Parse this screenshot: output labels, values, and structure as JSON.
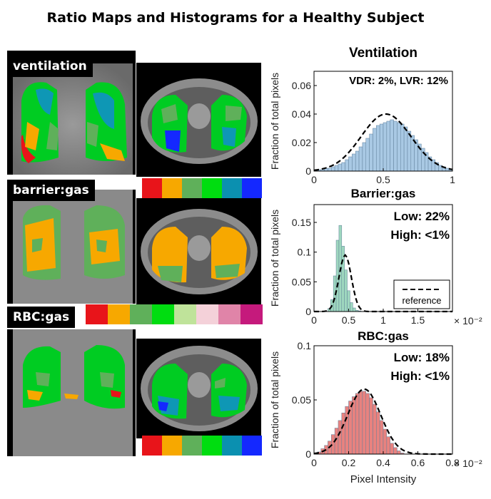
{
  "title": "Ratio Maps and Histograms for a Healthy Subject",
  "panels": [
    {
      "label": "ventilation"
    },
    {
      "label": "barrier:gas"
    },
    {
      "label": "RBC:gas"
    }
  ],
  "colorbars": {
    "six_bin": [
      "#e8141a",
      "#f7a800",
      "#5fb05a",
      "#00dd10",
      "#0b90b0",
      "#1428ff"
    ],
    "eight_bin": [
      "#e8141a",
      "#f7a800",
      "#5fb05a",
      "#00dd10",
      "#bfe39a",
      "#f4d1d9",
      "#e084a8",
      "#c51a7c"
    ]
  },
  "chart_data": [
    {
      "type": "bar",
      "title": "Ventilation",
      "ylabel": "Fraction of total pixels",
      "xlabel": "",
      "xlim": [
        0,
        1
      ],
      "ylim": [
        0,
        0.07
      ],
      "xticks": [
        "0",
        "0.5",
        "1"
      ],
      "yticks": [
        "0",
        "0.02",
        "0.04",
        "0.06"
      ],
      "annotation": "VDR: 2%, LVR: 12%",
      "bar_color": "#a9c9e4",
      "bin_width": 0.025,
      "x": [
        0.0125,
        0.0375,
        0.0625,
        0.0875,
        0.1125,
        0.1375,
        0.1625,
        0.1875,
        0.2125,
        0.2375,
        0.2625,
        0.2875,
        0.3125,
        0.3375,
        0.3625,
        0.3875,
        0.4125,
        0.4375,
        0.4625,
        0.4875,
        0.5125,
        0.5375,
        0.5625,
        0.5875,
        0.6125,
        0.6375,
        0.6625,
        0.6875,
        0.7125,
        0.7375,
        0.7625,
        0.7875,
        0.8125,
        0.8375,
        0.8625,
        0.8875,
        0.9125,
        0.9375,
        0.9625,
        0.9875
      ],
      "values": [
        0.001,
        0.001,
        0.001,
        0.002,
        0.002,
        0.003,
        0.004,
        0.005,
        0.006,
        0.008,
        0.01,
        0.012,
        0.014,
        0.017,
        0.02,
        0.023,
        0.026,
        0.03,
        0.032,
        0.033,
        0.034,
        0.035,
        0.036,
        0.035,
        0.034,
        0.033,
        0.031,
        0.028,
        0.025,
        0.022,
        0.019,
        0.016,
        0.013,
        0.01,
        0.008,
        0.006,
        0.004,
        0.003,
        0.002,
        0.001
      ],
      "reference": {
        "mean": 0.52,
        "sd": 0.18,
        "peak": 0.04
      }
    },
    {
      "type": "bar",
      "title": "Barrier:gas",
      "ylabel": "Fraction of total pixels",
      "xlabel": "",
      "xlim": [
        0,
        0.02
      ],
      "ylim": [
        0,
        0.18
      ],
      "xticks": [
        "0",
        "0.5",
        "1",
        "1.5"
      ],
      "yticks": [
        "0",
        "0.05",
        "0.1",
        "0.15"
      ],
      "xscale_note": "× 10⁻²",
      "annotations": [
        "Low: 22%",
        "High: <1%"
      ],
      "legend": "reference",
      "bar_color": "#9fd8bf",
      "bin_width": 0.0004,
      "x": [
        0.0022,
        0.0026,
        0.003,
        0.0034,
        0.0038,
        0.0042,
        0.0046,
        0.005,
        0.0054,
        0.0058,
        0.0062,
        0.0066
      ],
      "values": [
        0.005,
        0.02,
        0.06,
        0.12,
        0.145,
        0.11,
        0.07,
        0.035,
        0.015,
        0.006,
        0.002,
        0.001
      ],
      "reference": {
        "mean": 0.0045,
        "sd": 0.0009,
        "peak": 0.095
      }
    },
    {
      "type": "bar",
      "title": "RBC:gas",
      "ylabel": "Fraction of total pixels",
      "xlabel": "Pixel Intensity",
      "xlim": [
        0,
        0.008
      ],
      "ylim": [
        0,
        0.1
      ],
      "xticks": [
        "0",
        "0.2",
        "0.4",
        "0.6",
        "0.8"
      ],
      "yticks": [
        "0",
        "0.05",
        "0.1"
      ],
      "xscale_note": "× 10⁻²",
      "annotations": [
        "Low: 18%",
        "High: <1%"
      ],
      "bar_color": "#e8827f",
      "bin_width": 0.0002,
      "x": [
        0.0001,
        0.0003,
        0.0005,
        0.0007,
        0.0009,
        0.0011,
        0.0013,
        0.0015,
        0.0017,
        0.0019,
        0.0021,
        0.0023,
        0.0025,
        0.0027,
        0.0029,
        0.0031,
        0.0033,
        0.0035,
        0.0037,
        0.0039,
        0.0041,
        0.0043,
        0.0045,
        0.0047,
        0.0049,
        0.0051
      ],
      "values": [
        0.001,
        0.002,
        0.005,
        0.008,
        0.012,
        0.018,
        0.024,
        0.031,
        0.038,
        0.044,
        0.049,
        0.053,
        0.056,
        0.058,
        0.058,
        0.056,
        0.052,
        0.046,
        0.039,
        0.031,
        0.023,
        0.016,
        0.01,
        0.006,
        0.003,
        0.001
      ],
      "reference": {
        "mean": 0.0029,
        "sd": 0.00095,
        "peak": 0.06
      }
    }
  ]
}
